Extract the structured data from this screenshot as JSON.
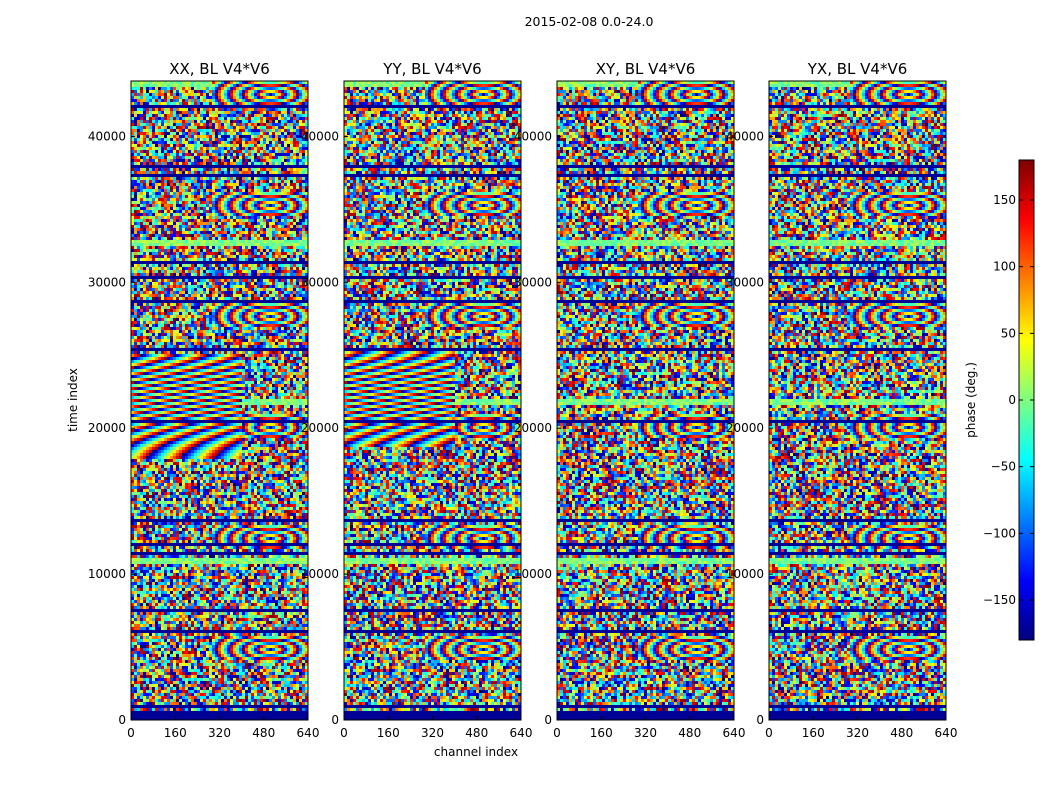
{
  "chart_data": {
    "type": "heatmap",
    "suptitle": "2015-02-08 0.0-24.0",
    "xlabel": "channel index",
    "ylabel": "time index",
    "xlim": [
      0,
      640
    ],
    "ylim": [
      0,
      43800
    ],
    "xticks": [
      0,
      160,
      320,
      480,
      640
    ],
    "yticks": [
      0,
      10000,
      20000,
      30000,
      40000
    ],
    "colorbar": {
      "label": "phase (deg.)",
      "range": [
        -180,
        180
      ],
      "ticks": [
        -150,
        -100,
        -50,
        0,
        50,
        100,
        150
      ],
      "tick_labels": [
        "−150",
        "−100",
        "−50",
        "0",
        "50",
        "100",
        "150"
      ],
      "colormap": "jet",
      "colors": [
        "#00007f",
        "#0000ff",
        "#007fff",
        "#00ffff",
        "#7fff7f",
        "#ffff00",
        "#ff7f00",
        "#ff0000",
        "#7f0000"
      ]
    },
    "panels": [
      {
        "title": "XX, BL V4*V6",
        "pol": "XX",
        "fringe_band": [
          18000,
          25000
        ]
      },
      {
        "title": "YY, BL V4*V6",
        "pol": "YY",
        "fringe_band": [
          19000,
          25500
        ]
      },
      {
        "title": "XY, BL V4*V6",
        "pol": "XY",
        "fringe_band": null
      },
      {
        "title": "YX, BL V4*V6",
        "pol": "YX",
        "fringe_band": null
      }
    ],
    "flagged_bottom_rows": [
      0,
      800
    ],
    "flagged_time_rows": [
      1000,
      6200,
      7600,
      11600,
      12100,
      13800,
      20500,
      25600,
      28700,
      30500,
      31500,
      37500,
      38000,
      42100
    ]
  }
}
